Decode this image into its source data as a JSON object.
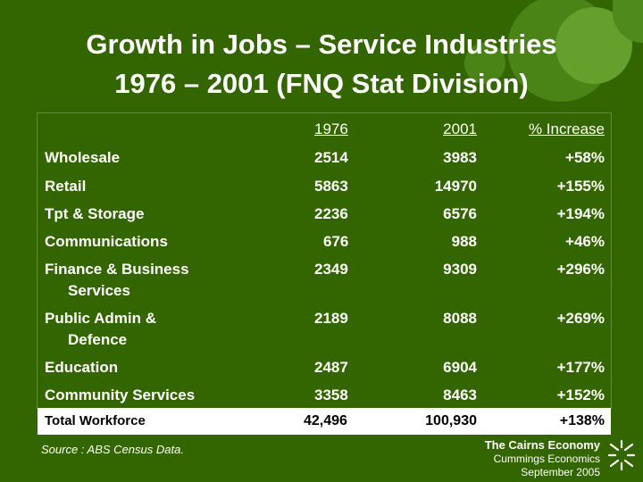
{
  "title": {
    "line1": "Growth in Jobs – Service Industries",
    "line2": "1976 – 2001 (FNQ Stat Division)"
  },
  "table": {
    "headers": {
      "label": "",
      "y1976": "1976",
      "y2001": "2001",
      "pct": "% Increase"
    },
    "rows": [
      {
        "label": "Wholesale",
        "y1976": "2514",
        "y2001": "3983",
        "pct": "+58%"
      },
      {
        "label": "Retail",
        "y1976": "5863",
        "y2001": "14970",
        "pct": "+155%"
      },
      {
        "label": "Tpt & Storage",
        "y1976": "2236",
        "y2001": "6576",
        "pct": "+194%"
      },
      {
        "label": "Communications",
        "y1976": "676",
        "y2001": "988",
        "pct": "+46%"
      },
      {
        "label": "Finance & Business Services",
        "y1976": "2349",
        "y2001": "9309",
        "pct": "+296%"
      },
      {
        "label": "Public Admin & Defence",
        "y1976": "2189",
        "y2001": "8088",
        "pct": "+269%"
      },
      {
        "label": "Education",
        "y1976": "2487",
        "y2001": "6904",
        "pct": "+177%"
      },
      {
        "label": "Community Services",
        "y1976": "3358",
        "y2001": "8463",
        "pct": "+152%"
      }
    ],
    "total": {
      "label": "Total Workforce",
      "y1976": "42,496",
      "y2001": "100,930",
      "pct": "+138%"
    }
  },
  "source": "Source : ABS Census Data.",
  "credit": {
    "line1": "The Cairns Economy",
    "line2": "Cummings Economics",
    "line3": "September 2005"
  },
  "colors": {
    "background": "#336600",
    "total_bar": "#ffffff",
    "text": "#ffffff"
  }
}
